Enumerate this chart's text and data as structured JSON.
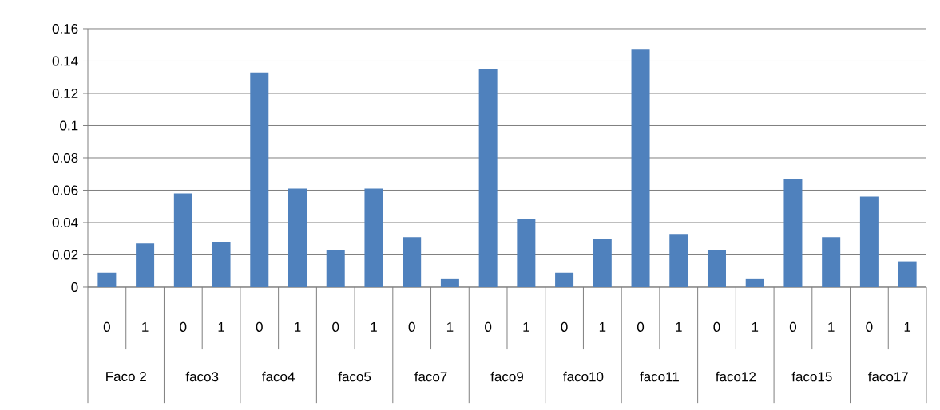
{
  "chart_data": {
    "type": "bar",
    "categories": [
      "0",
      "1",
      "0",
      "1",
      "0",
      "1",
      "0",
      "1",
      "0",
      "1",
      "0",
      "1",
      "0",
      "1",
      "0",
      "1",
      "0",
      "1",
      "0",
      "1",
      "0",
      "1"
    ],
    "values": [
      0.009,
      0.027,
      0.058,
      0.028,
      0.133,
      0.061,
      0.023,
      0.061,
      0.031,
      0.005,
      0.135,
      0.042,
      0.009,
      0.03,
      0.147,
      0.033,
      0.023,
      0.005,
      0.067,
      0.031,
      0.056,
      0.016
    ],
    "color": "#4f81bd",
    "ylim": [
      0,
      0.16
    ],
    "yticks": [
      0,
      0.02,
      0.04,
      0.06,
      0.08,
      0.1,
      0.12,
      0.14,
      0.16
    ],
    "grid": "y",
    "annotations": [
      "Faco 2",
      "faco3",
      "faco4",
      "faco5",
      "faco7",
      "faco9",
      "faco10",
      "faco11",
      "faco12",
      "faco15",
      "faco17"
    ]
  }
}
